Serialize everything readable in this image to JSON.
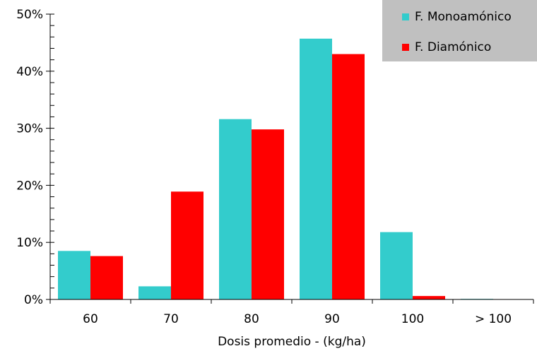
{
  "chart_data": {
    "type": "bar",
    "title": "",
    "xlabel": "Dosis promedio - (kg/ha)",
    "ylabel": "",
    "categories": [
      "60",
      "70",
      "80",
      "90",
      "100",
      "> 100"
    ],
    "series": [
      {
        "name": "F. Monoamónico",
        "color": "#33cccc",
        "values": [
          8.5,
          2.3,
          31.6,
          45.7,
          11.8,
          0.1
        ]
      },
      {
        "name": "F. Diamónico",
        "color": "#ff0000",
        "values": [
          7.6,
          18.9,
          29.8,
          43.0,
          0.6,
          0.0
        ]
      }
    ],
    "ylim": [
      0,
      50
    ],
    "yticks": [
      "0%",
      "10%",
      "20%",
      "30%",
      "40%",
      "50%"
    ],
    "legend_position": "top-right",
    "grid": false
  }
}
